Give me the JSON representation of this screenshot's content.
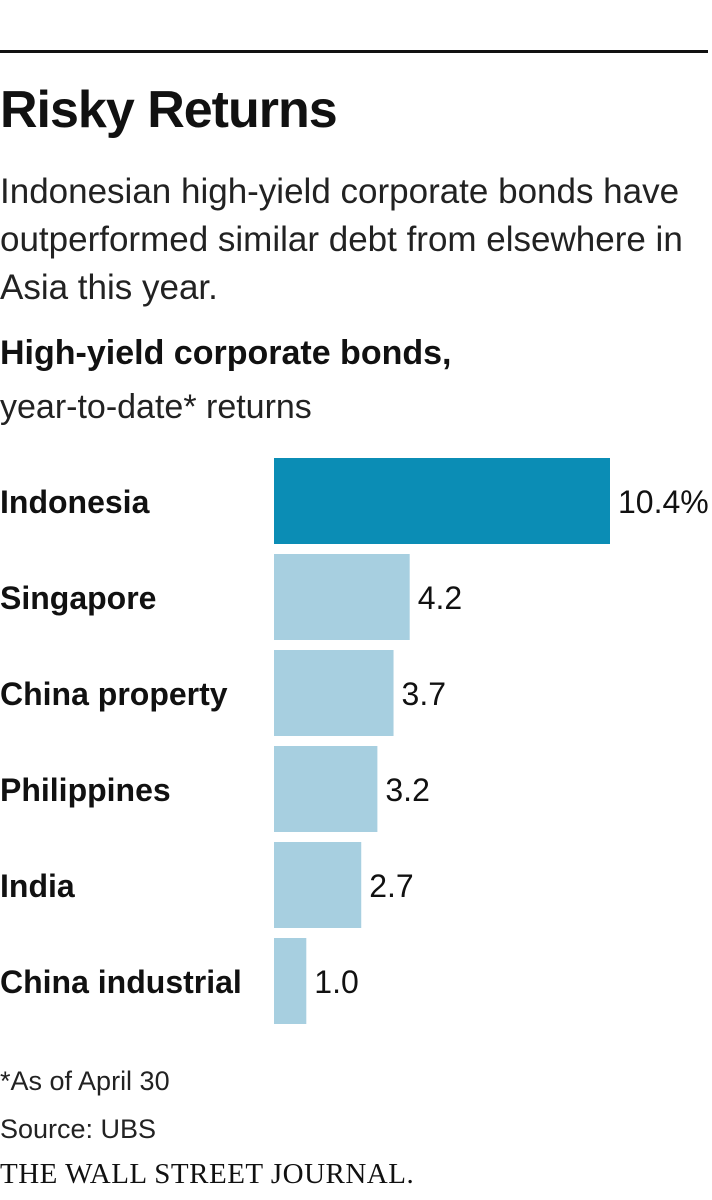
{
  "header": {
    "title": "Risky Returns",
    "subtitle": "Indonesian high-yield corporate bonds have outperformed similar debt from elsewhere in Asia this year."
  },
  "chart_heading": {
    "title": "High-yield corporate bonds,",
    "subtitle": "year-to-date* returns"
  },
  "footer": {
    "footnote": "*As of April 30",
    "source": "Source: UBS",
    "publisher": "THE WALL STREET JOURNAL."
  },
  "colors": {
    "highlight_bar": "#0b8db5",
    "regular_bar": "#a7cfe0",
    "text": "#111111",
    "rule": "#111111"
  },
  "chart_data": {
    "type": "bar",
    "orientation": "horizontal",
    "title": "High-yield corporate bonds,",
    "subtitle": "year-to-date* returns",
    "categories": [
      "Indonesia",
      "Singapore",
      "China property",
      "Philippines",
      "India",
      "China industrial"
    ],
    "values": [
      10.4,
      4.2,
      3.7,
      3.2,
      2.7,
      1.0
    ],
    "value_labels": [
      "10.4%",
      "4.2",
      "3.7",
      "3.2",
      "2.7",
      "1.0"
    ],
    "highlight_index": 0,
    "unit": "%",
    "xlim": [
      0,
      10.4
    ],
    "grid": false,
    "legend": "none"
  }
}
